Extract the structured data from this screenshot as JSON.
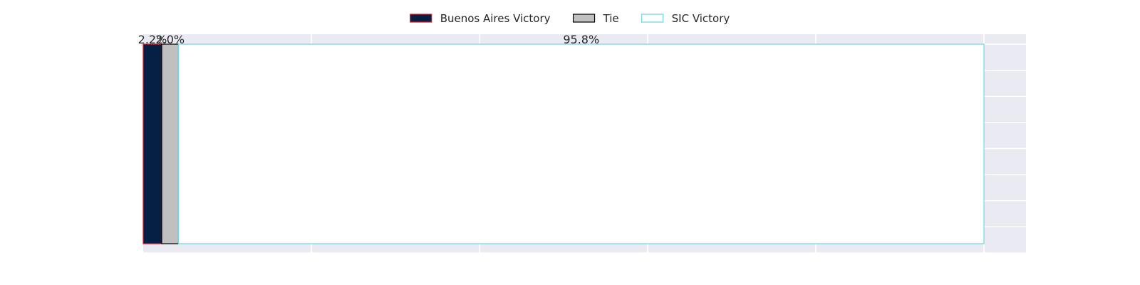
{
  "chart_data": {
    "type": "bar",
    "orientation": "horizontal-stacked",
    "xlim": [
      0,
      105
    ],
    "categories": [
      ""
    ],
    "series": [
      {
        "name": "Buenos Aires Victory",
        "value": 2.2,
        "label": "2.2%",
        "fill": "#061f45",
        "stroke": "#e0141e"
      },
      {
        "name": "Tie",
        "value": 2.0,
        "label": "2.0%",
        "fill": "#c0c0c0",
        "stroke": "#000000"
      },
      {
        "name": "SIC Victory",
        "value": 95.8,
        "label": "95.8%",
        "fill": "#ffffff",
        "stroke": "#6fd3e0"
      }
    ],
    "grid": true,
    "legend": "top-center",
    "background": "#eaeaf2",
    "grid_color": "#ffffff"
  }
}
